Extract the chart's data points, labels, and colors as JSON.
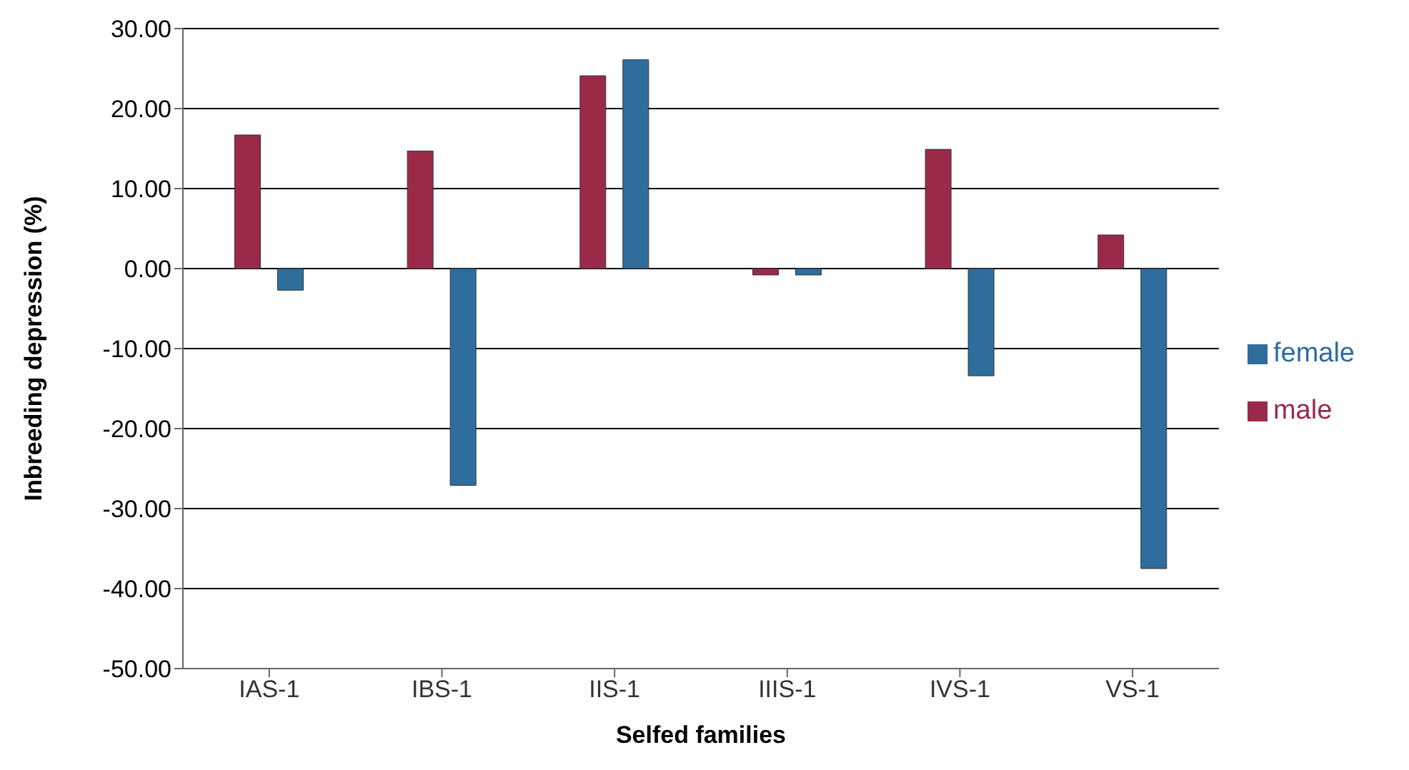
{
  "chart_data": {
    "type": "bar",
    "xlabel": "Selfed families",
    "ylabel": "Inbreeding depression (%)",
    "categories": [
      "IAS-1",
      "IBS-1",
      "IIS-1",
      "IIIS-1",
      "IVS-1",
      "VS-1"
    ],
    "series": [
      {
        "name": "male",
        "color": "#9b2a4a",
        "values": [
          16.7,
          14.7,
          24.1,
          -0.8,
          14.9,
          4.2
        ]
      },
      {
        "name": "female",
        "color": "#2f6d9c",
        "values": [
          -2.7,
          -27.1,
          26.1,
          -0.8,
          -13.4,
          -37.5
        ]
      }
    ],
    "ylim": [
      -50,
      30
    ],
    "yticks": [
      {
        "value": -50,
        "label": "-50.00"
      },
      {
        "value": -40,
        "label": "-40.00"
      },
      {
        "value": -30,
        "label": "-30.00"
      },
      {
        "value": -20,
        "label": "-20.00"
      },
      {
        "value": -10,
        "label": "-10.00"
      },
      {
        "value": 0,
        "label": "0.00"
      },
      {
        "value": 10,
        "label": "10.00"
      },
      {
        "value": 20,
        "label": "20.00"
      },
      {
        "value": 30,
        "label": "30.00"
      }
    ],
    "grid": "y",
    "legend": "right"
  }
}
